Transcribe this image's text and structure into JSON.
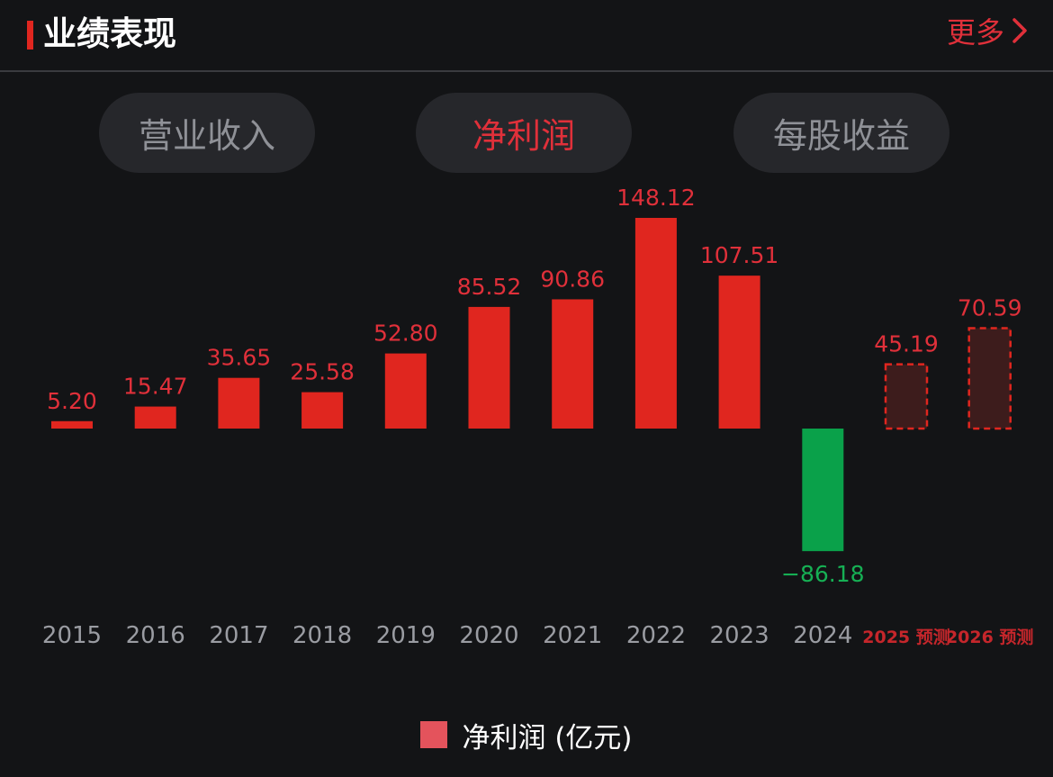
{
  "header": {
    "title": "业绩表现",
    "more_label": "更多"
  },
  "tabs": [
    {
      "label": "营业收入",
      "active": false
    },
    {
      "label": "净利润",
      "active": true
    },
    {
      "label": "每股收益",
      "active": false
    }
  ],
  "colors": {
    "accent": "#e0261f",
    "positive": "#e0261f",
    "negative": "#0aa14a",
    "forecast_fill": "#3d1c1c",
    "forecast_border": "#e0261f",
    "label_red": "#e0303a",
    "label_green": "#16b054",
    "axis_text": "#9a9ca2"
  },
  "chart_data": {
    "type": "bar",
    "categories": [
      "2015",
      "2016",
      "2017",
      "2018",
      "2019",
      "2020",
      "2021",
      "2022",
      "2023",
      "2024",
      "2025 预测",
      "2026 预测"
    ],
    "values": [
      5.2,
      15.47,
      35.65,
      25.58,
      52.8,
      85.52,
      90.86,
      148.12,
      107.51,
      -86.18,
      45.19,
      70.59
    ],
    "value_labels": [
      "5.20",
      "15.47",
      "35.65",
      "25.58",
      "52.80",
      "85.52",
      "90.86",
      "148.12",
      "107.51",
      "−86.18",
      "45.19",
      "70.59"
    ],
    "forecast": [
      false,
      false,
      false,
      false,
      false,
      false,
      false,
      false,
      false,
      false,
      true,
      true
    ],
    "series": [
      {
        "name": "净利润 (亿元)"
      }
    ],
    "title": "",
    "xlabel": "",
    "ylabel": "",
    "legend": "bottom-center",
    "grid": false
  },
  "legend": {
    "label": "净利润 (亿元)"
  }
}
